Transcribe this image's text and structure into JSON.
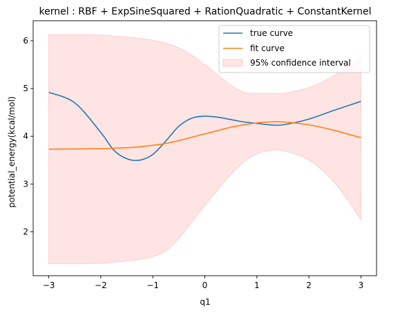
{
  "chart_data": {
    "type": "line",
    "title": "kernel : RBF + ExpSineSquared + RationQuadratic + ConstantKernel",
    "xlabel": "q1",
    "ylabel": "potential_energy(kcal/mol)",
    "xlim": [
      -3.3,
      3.3
    ],
    "ylim": [
      1.08,
      6.42
    ],
    "xticks": [
      -3,
      -2,
      -1,
      0,
      1,
      2,
      3
    ],
    "yticks": [
      2,
      3,
      4,
      5,
      6
    ],
    "grid": false,
    "legend": {
      "position": "top-right"
    },
    "x": [
      -3.0,
      -2.5,
      -2.0,
      -1.75,
      -1.5,
      -1.25,
      -1.0,
      -0.75,
      -0.5,
      -0.25,
      0.0,
      0.25,
      0.5,
      0.75,
      1.0,
      1.25,
      1.5,
      2.0,
      2.5,
      3.0
    ],
    "series": [
      {
        "name": "true curve",
        "color": "#1f77b4",
        "values": [
          4.92,
          4.7,
          4.08,
          3.71,
          3.53,
          3.5,
          3.62,
          3.9,
          4.21,
          4.38,
          4.42,
          4.4,
          4.35,
          4.3,
          4.27,
          4.24,
          4.24,
          4.36,
          4.55,
          4.73
        ]
      },
      {
        "name": "fit curve",
        "color": "#ff7f0e",
        "values": [
          3.73,
          3.735,
          3.74,
          3.75,
          3.76,
          3.78,
          3.81,
          3.85,
          3.91,
          3.98,
          4.05,
          4.12,
          4.19,
          4.24,
          4.28,
          4.3,
          4.3,
          4.24,
          4.12,
          3.97
        ]
      },
      {
        "name": "95% confidence interval",
        "type": "band",
        "color": "#ffaaaa",
        "lower": [
          1.33,
          1.33,
          1.34,
          1.36,
          1.39,
          1.42,
          1.48,
          1.6,
          1.86,
          2.2,
          2.55,
          2.88,
          3.2,
          3.46,
          3.63,
          3.7,
          3.7,
          3.5,
          3.02,
          2.25
        ],
        "upper": [
          6.13,
          6.13,
          6.12,
          6.1,
          6.08,
          6.05,
          6.01,
          5.95,
          5.85,
          5.7,
          5.5,
          5.28,
          5.07,
          4.92,
          4.9,
          4.9,
          4.9,
          5.02,
          5.28,
          5.68
        ]
      }
    ]
  }
}
